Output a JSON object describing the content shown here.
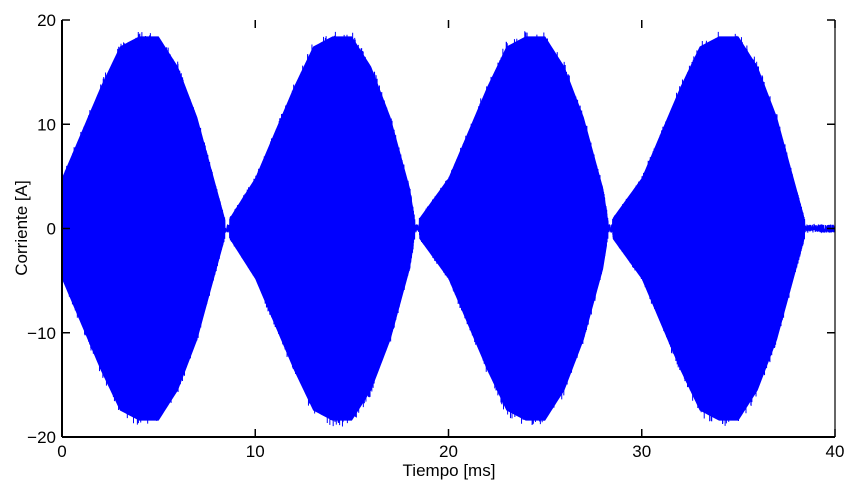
{
  "chart_data": {
    "type": "line",
    "title": "",
    "xlabel": "Tiempo [ms]",
    "ylabel": "Corriente [A]",
    "xlim": [
      0,
      40
    ],
    "ylim": [
      -20,
      20
    ],
    "x_ticks": [
      0,
      10,
      20,
      30,
      40
    ],
    "x_tick_labels": [
      "0",
      "10",
      "20",
      "30",
      "40"
    ],
    "y_ticks": [
      -20,
      -10,
      0,
      10,
      20
    ],
    "y_tick_labels": [
      "−20",
      "−10",
      "0",
      "10",
      "20"
    ],
    "grid": false,
    "series": [
      {
        "color": "#0000ff",
        "description_points": {
          "x": [
            0,
            2,
            3,
            4,
            5,
            6,
            7,
            8,
            8.5,
            10,
            12,
            13,
            14,
            15,
            16,
            17,
            18,
            18.3,
            20,
            22,
            23,
            24,
            25,
            26,
            27,
            28,
            28.3,
            30,
            32,
            33,
            34,
            35,
            36,
            37,
            38,
            38.5,
            40
          ],
          "envelope_max": [
            5,
            14,
            18,
            19,
            19,
            16,
            11,
            4,
            0.5,
            5,
            14,
            18,
            19,
            19,
            16,
            11,
            4,
            0.5,
            5,
            14,
            18,
            19,
            19,
            16,
            11,
            4,
            0.5,
            5,
            14,
            18,
            19,
            19,
            16,
            11,
            4,
            0.5,
            0.5
          ]
        }
      }
    ]
  }
}
